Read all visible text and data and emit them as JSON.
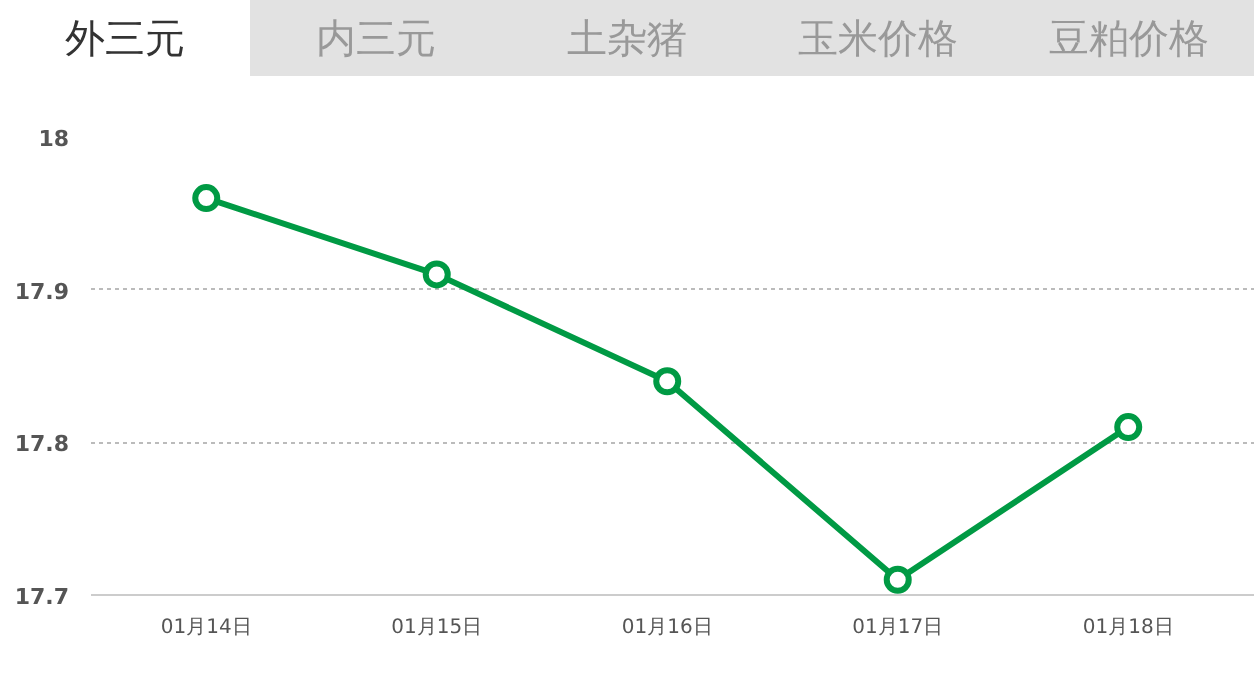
{
  "chart_data": {
    "type": "line",
    "annotations": [
      "外三元",
      "内三元",
      "土杂猪",
      "玉米价格",
      "豆粕价格"
    ],
    "categories": [
      "01月14日",
      "01月15日",
      "01月16日",
      "01月17日",
      "01月18日"
    ],
    "series": [
      {
        "color": "#009a44",
        "values": [
          17.96,
          17.91,
          17.84,
          17.71,
          17.81
        ]
      }
    ],
    "ylim": [
      17.7,
      18
    ],
    "yticks": [
      17.7,
      17.8,
      17.9,
      18
    ],
    "grid": "y",
    "marker": "circle",
    "line_style": "solid"
  }
}
